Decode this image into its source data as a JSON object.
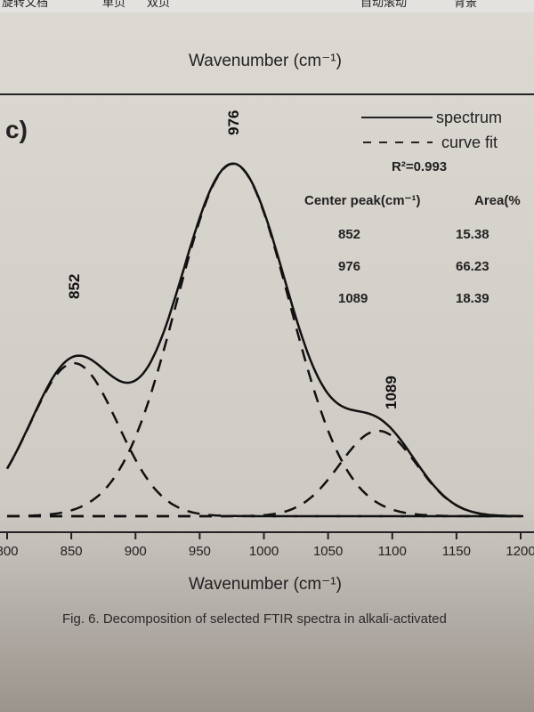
{
  "toolbar": {
    "items": [
      "旋转文档",
      "单页",
      "双页",
      "自动滚动",
      "背景"
    ]
  },
  "top_axis_label": "Wavenumber (cm⁻¹)",
  "caption": "Fig. 6. Decomposition of selected FTIR spectra in alkali-activated",
  "chart_data": {
    "type": "line",
    "panel_label": "c)",
    "xlabel": "Wavenumber (cm⁻¹)",
    "ylabel": "",
    "xlim": [
      800,
      1200
    ],
    "ylim": [
      0,
      1
    ],
    "xticks": [
      800,
      850,
      900,
      950,
      1000,
      1050,
      1100,
      1150,
      1200
    ],
    "legend": {
      "position": "top-right",
      "entries": [
        "spectrum",
        "curve fit"
      ],
      "r2": "R²=0.993"
    },
    "components": [
      {
        "center": 852,
        "height": 0.43,
        "width": 34
      },
      {
        "center": 976,
        "height": 0.99,
        "width": 44
      },
      {
        "center": 1089,
        "height": 0.24,
        "width": 30
      }
    ],
    "peak_labels": [
      "852",
      "976",
      "1089"
    ],
    "table": {
      "headers": [
        "Center peak(cm⁻¹)",
        "Area(%"
      ],
      "rows": [
        [
          "852",
          "15.38"
        ],
        [
          "976",
          "66.23"
        ],
        [
          "1089",
          "18.39"
        ]
      ]
    }
  }
}
